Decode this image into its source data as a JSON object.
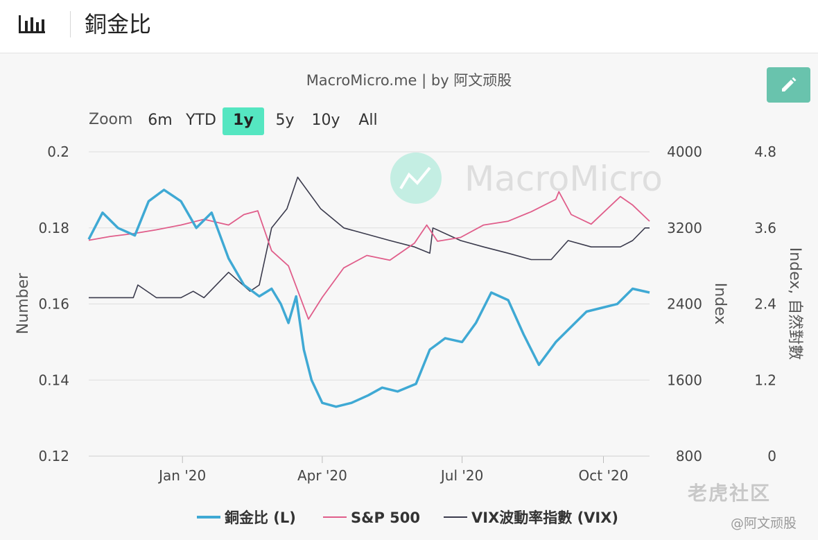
{
  "header": {
    "title": "銅金比",
    "icon": "bar-chart-icon"
  },
  "source_text": "MacroMicro.me | by 阿文顽股",
  "watermark": "MacroMicro",
  "zoom": {
    "label": "Zoom",
    "buttons": [
      "6m",
      "YTD",
      "1y",
      "5y",
      "10y",
      "All"
    ],
    "active": "1y"
  },
  "edit_button": {
    "icon": "pencil-icon"
  },
  "footer": {
    "tiger_text": "老虎社区",
    "credit": "@阿文顽股"
  },
  "chart_data": {
    "type": "line",
    "x_labels": [
      "Jan '20",
      "Apr '20",
      "Jul '20",
      "Oct '20"
    ],
    "x_range": [
      "2019-11-01",
      "2020-10-31"
    ],
    "axes": {
      "left": {
        "title": "Number",
        "ticks": [
          "0.2",
          "0.18",
          "0.16",
          "0.14",
          "0.12"
        ],
        "range": [
          0.12,
          0.2
        ]
      },
      "right1": {
        "title": "Index",
        "ticks": [
          "4000",
          "3200",
          "2400",
          "1600",
          "800"
        ],
        "range": [
          800,
          4000
        ]
      },
      "right2": {
        "title": "Index, 自然對數",
        "ticks": [
          "4.8",
          "3.6",
          "2.4",
          "1.2",
          "0"
        ],
        "range": [
          0,
          4.8
        ]
      }
    },
    "grid": true,
    "legend_position": "bottom",
    "series": [
      {
        "name": "銅金比 (L)",
        "axis": "left",
        "color": "#3fa9d4",
        "points": [
          [
            "2019-11-01",
            0.177
          ],
          [
            "2019-11-10",
            0.184
          ],
          [
            "2019-11-20",
            0.18
          ],
          [
            "2019-12-01",
            0.178
          ],
          [
            "2019-12-10",
            0.187
          ],
          [
            "2019-12-20",
            0.19
          ],
          [
            "2019-12-31",
            0.187
          ],
          [
            "2020-01-10",
            0.18
          ],
          [
            "2020-01-20",
            0.184
          ],
          [
            "2020-01-31",
            0.172
          ],
          [
            "2020-02-10",
            0.165
          ],
          [
            "2020-02-20",
            0.162
          ],
          [
            "2020-02-28",
            0.164
          ],
          [
            "2020-03-05",
            0.16
          ],
          [
            "2020-03-10",
            0.155
          ],
          [
            "2020-03-15",
            0.162
          ],
          [
            "2020-03-20",
            0.148
          ],
          [
            "2020-03-25",
            0.14
          ],
          [
            "2020-04-01",
            0.134
          ],
          [
            "2020-04-10",
            0.133
          ],
          [
            "2020-04-20",
            0.134
          ],
          [
            "2020-05-01",
            0.136
          ],
          [
            "2020-05-10",
            0.138
          ],
          [
            "2020-05-20",
            0.137
          ],
          [
            "2020-06-01",
            0.139
          ],
          [
            "2020-06-10",
            0.148
          ],
          [
            "2020-06-20",
            0.151
          ],
          [
            "2020-07-01",
            0.15
          ],
          [
            "2020-07-10",
            0.155
          ],
          [
            "2020-07-20",
            0.163
          ],
          [
            "2020-07-31",
            0.161
          ],
          [
            "2020-08-10",
            0.152
          ],
          [
            "2020-08-20",
            0.144
          ],
          [
            "2020-08-31",
            0.15
          ],
          [
            "2020-09-10",
            0.154
          ],
          [
            "2020-09-20",
            0.158
          ],
          [
            "2020-09-30",
            0.159
          ],
          [
            "2020-10-10",
            0.16
          ],
          [
            "2020-10-20",
            0.164
          ],
          [
            "2020-10-31",
            0.163
          ]
        ]
      },
      {
        "name": "S&P 500",
        "axis": "right1",
        "color": "#e05d8a",
        "points": [
          [
            "2019-11-01",
            3070
          ],
          [
            "2019-11-15",
            3110
          ],
          [
            "2019-11-30",
            3140
          ],
          [
            "2019-12-15",
            3180
          ],
          [
            "2019-12-31",
            3230
          ],
          [
            "2020-01-15",
            3290
          ],
          [
            "2020-01-31",
            3230
          ],
          [
            "2020-02-10",
            3340
          ],
          [
            "2020-02-19",
            3380
          ],
          [
            "2020-02-28",
            2960
          ],
          [
            "2020-03-10",
            2800
          ],
          [
            "2020-03-23",
            2240
          ],
          [
            "2020-04-01",
            2470
          ],
          [
            "2020-04-15",
            2780
          ],
          [
            "2020-04-30",
            2910
          ],
          [
            "2020-05-15",
            2860
          ],
          [
            "2020-05-31",
            3040
          ],
          [
            "2020-06-08",
            3230
          ],
          [
            "2020-06-15",
            3060
          ],
          [
            "2020-06-30",
            3100
          ],
          [
            "2020-07-15",
            3230
          ],
          [
            "2020-07-31",
            3270
          ],
          [
            "2020-08-15",
            3370
          ],
          [
            "2020-08-31",
            3500
          ],
          [
            "2020-09-02",
            3580
          ],
          [
            "2020-09-10",
            3340
          ],
          [
            "2020-09-23",
            3240
          ],
          [
            "2020-10-12",
            3530
          ],
          [
            "2020-10-20",
            3440
          ],
          [
            "2020-10-31",
            3270
          ]
        ]
      },
      {
        "name": "VIX波動率指數 (VIX)",
        "axis": "right2",
        "color": "#3a3a4c",
        "points": [
          [
            "2019-11-01",
            2.5
          ],
          [
            "2019-11-15",
            2.5
          ],
          [
            "2019-11-30",
            2.5
          ],
          [
            "2019-12-03",
            2.7
          ],
          [
            "2019-12-15",
            2.5
          ],
          [
            "2019-12-31",
            2.5
          ],
          [
            "2020-01-08",
            2.6
          ],
          [
            "2020-01-15",
            2.5
          ],
          [
            "2020-01-27",
            2.8
          ],
          [
            "2020-01-31",
            2.9
          ],
          [
            "2020-02-14",
            2.6
          ],
          [
            "2020-02-20",
            2.7
          ],
          [
            "2020-02-28",
            3.6
          ],
          [
            "2020-03-09",
            3.9
          ],
          [
            "2020-03-16",
            4.4
          ],
          [
            "2020-03-31",
            3.9
          ],
          [
            "2020-04-15",
            3.6
          ],
          [
            "2020-04-30",
            3.5
          ],
          [
            "2020-05-15",
            3.4
          ],
          [
            "2020-05-31",
            3.3
          ],
          [
            "2020-06-10",
            3.2
          ],
          [
            "2020-06-12",
            3.6
          ],
          [
            "2020-06-30",
            3.4
          ],
          [
            "2020-07-15",
            3.3
          ],
          [
            "2020-07-31",
            3.2
          ],
          [
            "2020-08-15",
            3.1
          ],
          [
            "2020-08-28",
            3.1
          ],
          [
            "2020-09-08",
            3.4
          ],
          [
            "2020-09-23",
            3.3
          ],
          [
            "2020-10-12",
            3.3
          ],
          [
            "2020-10-20",
            3.4
          ],
          [
            "2020-10-28",
            3.6
          ],
          [
            "2020-10-31",
            3.6
          ]
        ]
      }
    ]
  }
}
